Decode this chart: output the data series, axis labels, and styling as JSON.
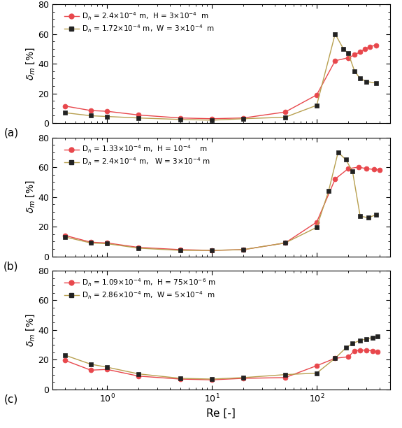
{
  "panels": [
    {
      "label": "(a)",
      "legend": [
        {
          "text": "D$_h$ = 2.4×10$^{-4}$ m,  H = 3×10$^{-4}$  m",
          "color": "#e8474c",
          "line_color": "#e8474c",
          "marker": "o"
        },
        {
          "text": "D$_h$ = 1.72×10$^{-4}$ m,  W = 3×10$^{-4}$  m",
          "color": "#222222",
          "line_color": "#b8a050",
          "marker": "s"
        }
      ],
      "series": [
        {
          "x": [
            0.4,
            0.7,
            1.0,
            2.0,
            5.0,
            10.0,
            20.0,
            50.0,
            100.0,
            150.0,
            200.0,
            230.0,
            260.0,
            290.0,
            320.0,
            370.0
          ],
          "y": [
            11.5,
            8.5,
            8.0,
            5.5,
            3.5,
            3.0,
            3.5,
            7.5,
            19.0,
            42.0,
            44.0,
            46.0,
            48.0,
            50.0,
            51.5,
            52.5
          ]
        },
        {
          "x": [
            0.4,
            0.7,
            1.0,
            2.0,
            5.0,
            10.0,
            20.0,
            50.0,
            100.0,
            150.0,
            180.0,
            200.0,
            230.0,
            260.0,
            300.0,
            370.0
          ],
          "y": [
            7.0,
            5.0,
            4.5,
            3.5,
            2.5,
            2.0,
            3.0,
            4.0,
            12.0,
            60.0,
            50.0,
            47.0,
            35.0,
            30.0,
            28.0,
            27.0
          ]
        }
      ]
    },
    {
      "label": "(b)",
      "legend": [
        {
          "text": "D$_h$ = 1.33×10$^{-4}$ m,  H = 10$^{-4}$    m",
          "color": "#e8474c",
          "line_color": "#e8474c",
          "marker": "o"
        },
        {
          "text": "D$_h$ = 2.4×10$^{-4}$ m,   W = 3×10$^{-4}$ m",
          "color": "#222222",
          "line_color": "#b8a050",
          "marker": "s"
        }
      ],
      "series": [
        {
          "x": [
            0.4,
            0.7,
            1.0,
            2.0,
            5.0,
            10.0,
            20.0,
            50.0,
            100.0,
            150.0,
            200.0,
            250.0,
            300.0,
            350.0,
            400.0
          ],
          "y": [
            14.0,
            9.5,
            9.0,
            6.0,
            4.5,
            4.0,
            4.5,
            9.0,
            23.0,
            52.0,
            59.0,
            60.0,
            59.0,
            58.5,
            58.0
          ]
        },
        {
          "x": [
            0.4,
            0.7,
            1.0,
            2.0,
            5.0,
            10.0,
            20.0,
            50.0,
            100.0,
            130.0,
            160.0,
            190.0,
            220.0,
            260.0,
            310.0,
            370.0
          ],
          "y": [
            13.0,
            9.0,
            8.5,
            5.5,
            4.0,
            4.0,
            4.5,
            9.0,
            19.5,
            44.0,
            70.0,
            65.0,
            57.0,
            27.0,
            26.0,
            28.0
          ]
        }
      ]
    },
    {
      "label": "(c)",
      "legend": [
        {
          "text": "D$_h$ = 1.09×10$^{-4}$ m,  H = 75×10$^{-6}$ m",
          "color": "#e8474c",
          "line_color": "#e8474c",
          "marker": "o"
        },
        {
          "text": "D$_h$ = 2.86×10$^{-4}$ m,  W = 5×10$^{-4}$  m",
          "color": "#222222",
          "line_color": "#b8a050",
          "marker": "s"
        }
      ],
      "series": [
        {
          "x": [
            0.4,
            0.7,
            1.0,
            2.0,
            5.0,
            10.0,
            20.0,
            50.0,
            100.0,
            150.0,
            200.0,
            230.0,
            260.0,
            300.0,
            340.0,
            380.0
          ],
          "y": [
            19.5,
            13.0,
            13.5,
            9.0,
            7.0,
            6.5,
            7.5,
            8.0,
            16.0,
            21.0,
            22.0,
            26.0,
            26.5,
            26.5,
            26.0,
            25.5
          ]
        },
        {
          "x": [
            0.4,
            0.7,
            1.0,
            2.0,
            5.0,
            10.0,
            20.0,
            50.0,
            100.0,
            150.0,
            190.0,
            220.0,
            260.0,
            300.0,
            340.0,
            380.0
          ],
          "y": [
            23.0,
            17.0,
            15.0,
            10.5,
            7.5,
            7.0,
            8.0,
            10.0,
            11.0,
            21.0,
            28.0,
            31.0,
            33.0,
            34.0,
            35.0,
            35.5
          ]
        }
      ]
    }
  ],
  "ylim": [
    0,
    80
  ],
  "yticks": [
    0,
    20,
    40,
    60,
    80
  ],
  "xlim": [
    0.3,
    500
  ],
  "xlabel": "Re [-]",
  "ylabel": "$\\delta_m$ [%]",
  "background_color": "#ffffff"
}
